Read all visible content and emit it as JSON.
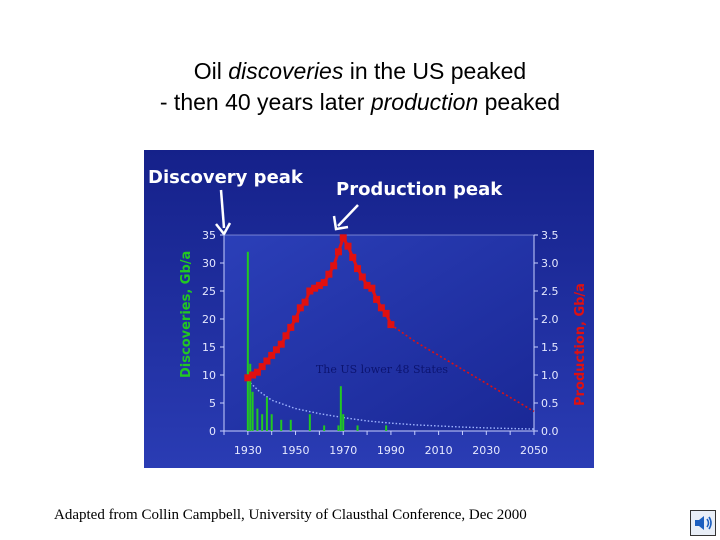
{
  "title": {
    "line1_prefix": "Oil ",
    "line1_em": "discoveries",
    "line1_suffix": " in the US peaked",
    "line2_prefix": "- then 40 years later ",
    "line2_em": "production",
    "line2_suffix": " peaked"
  },
  "caption": "Adapted from Collin Campbell, University of Clausthal Conference, Dec 2000",
  "icons": {
    "corner": "speaker-icon"
  },
  "chart_data": {
    "type": "bar+line",
    "annotations": {
      "discovery_peak": "Discovery peak",
      "production_peak": "Production peak",
      "watermark": "The US lower 48 States"
    },
    "left_axis": {
      "label": "Discoveries, Gb/a",
      "range": [
        0,
        35
      ],
      "ticks": [
        "0",
        "5",
        "10",
        "15",
        "20",
        "25",
        "30",
        "35"
      ],
      "color": "#22c822"
    },
    "right_axis": {
      "label": "Production, Gb/a",
      "range": [
        0,
        3.5
      ],
      "ticks": [
        "0.0",
        "0.5",
        "1.0",
        "1.5",
        "2.0",
        "2.5",
        "3.0",
        "3.5"
      ],
      "color": "#e01010"
    },
    "x_axis": {
      "range": [
        1920,
        2050
      ],
      "ticks": [
        "1930",
        "1950",
        "1970",
        "1990",
        "2010",
        "2030",
        "2050"
      ]
    },
    "discoveries": {
      "name": "Discoveries, Gb/a",
      "color": "#22c822",
      "x": [
        1930,
        1931,
        1932,
        1934,
        1936,
        1938,
        1940,
        1944,
        1948,
        1956,
        1962,
        1968,
        1969,
        1970,
        1976,
        1988
      ],
      "y": [
        32,
        12,
        7,
        4,
        3,
        6,
        3,
        2,
        2,
        3,
        1,
        1,
        8,
        3,
        1,
        1
      ]
    },
    "discovery_trend": {
      "color": "#9fb4ff",
      "x": [
        1930,
        1935,
        1940,
        1950,
        1960,
        1970,
        1980,
        1990,
        2000,
        2010,
        2020,
        2030,
        2040,
        2050
      ],
      "y": [
        9,
        7,
        5.5,
        4,
        3.1,
        2.4,
        1.8,
        1.4,
        1.1,
        0.9,
        0.7,
        0.55,
        0.45,
        0.35
      ]
    },
    "production": {
      "name": "Production, Gb/a",
      "color": "#e01010",
      "x": [
        1930,
        1932,
        1934,
        1936,
        1938,
        1940,
        1942,
        1944,
        1946,
        1948,
        1950,
        1952,
        1954,
        1956,
        1958,
        1960,
        1962,
        1964,
        1966,
        1968,
        1970,
        1972,
        1974,
        1976,
        1978,
        1980,
        1982,
        1984,
        1986,
        1988,
        1990
      ],
      "y": [
        0.95,
        1.0,
        1.05,
        1.15,
        1.25,
        1.35,
        1.45,
        1.55,
        1.7,
        1.85,
        2.0,
        2.2,
        2.3,
        2.5,
        2.55,
        2.6,
        2.65,
        2.8,
        2.95,
        3.2,
        3.45,
        3.3,
        3.1,
        2.9,
        2.75,
        2.6,
        2.55,
        2.35,
        2.2,
        2.1,
        1.9
      ]
    },
    "production_forecast": {
      "color": "#e01010",
      "x": [
        1990,
        2000,
        2010,
        2020,
        2030,
        2040,
        2050
      ],
      "y": [
        1.9,
        1.6,
        1.35,
        1.1,
        0.85,
        0.6,
        0.35
      ]
    },
    "grid": false,
    "background": "#1e2c9a"
  }
}
